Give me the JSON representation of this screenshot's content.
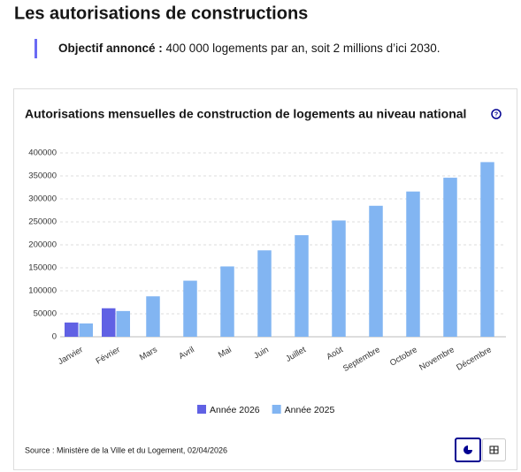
{
  "header": {
    "title": "Les autorisations de constructions",
    "objective_label": "Objectif annoncé :",
    "objective_text": "400 000 logements par an, soit 2 millions d’ici 2030."
  },
  "chart_data": {
    "type": "bar",
    "title": "Autorisations mensuelles de construction de logements au niveau national",
    "categories": [
      "Janvier",
      "Février",
      "Mars",
      "Avril",
      "Mai",
      "Juin",
      "Juillet",
      "Août",
      "Septembre",
      "Octobre",
      "Novembre",
      "Décembre"
    ],
    "series": [
      {
        "name": "Année 2026",
        "color": "#6061e4",
        "values": [
          31000,
          62000,
          null,
          null,
          null,
          null,
          null,
          null,
          null,
          null,
          null,
          null
        ]
      },
      {
        "name": "Année 2025",
        "color": "#82b5f2",
        "values": [
          29000,
          56000,
          88000,
          122000,
          153000,
          188000,
          221000,
          253000,
          285000,
          316000,
          346000,
          380000
        ]
      }
    ],
    "ylim": [
      0,
      400000
    ],
    "yticks": [
      0,
      50000,
      100000,
      150000,
      200000,
      250000,
      300000,
      350000,
      400000
    ],
    "grid": true,
    "legend": "bottom",
    "source": "Source : Ministère de la Ville et du Logement, 02/04/2026"
  }
}
